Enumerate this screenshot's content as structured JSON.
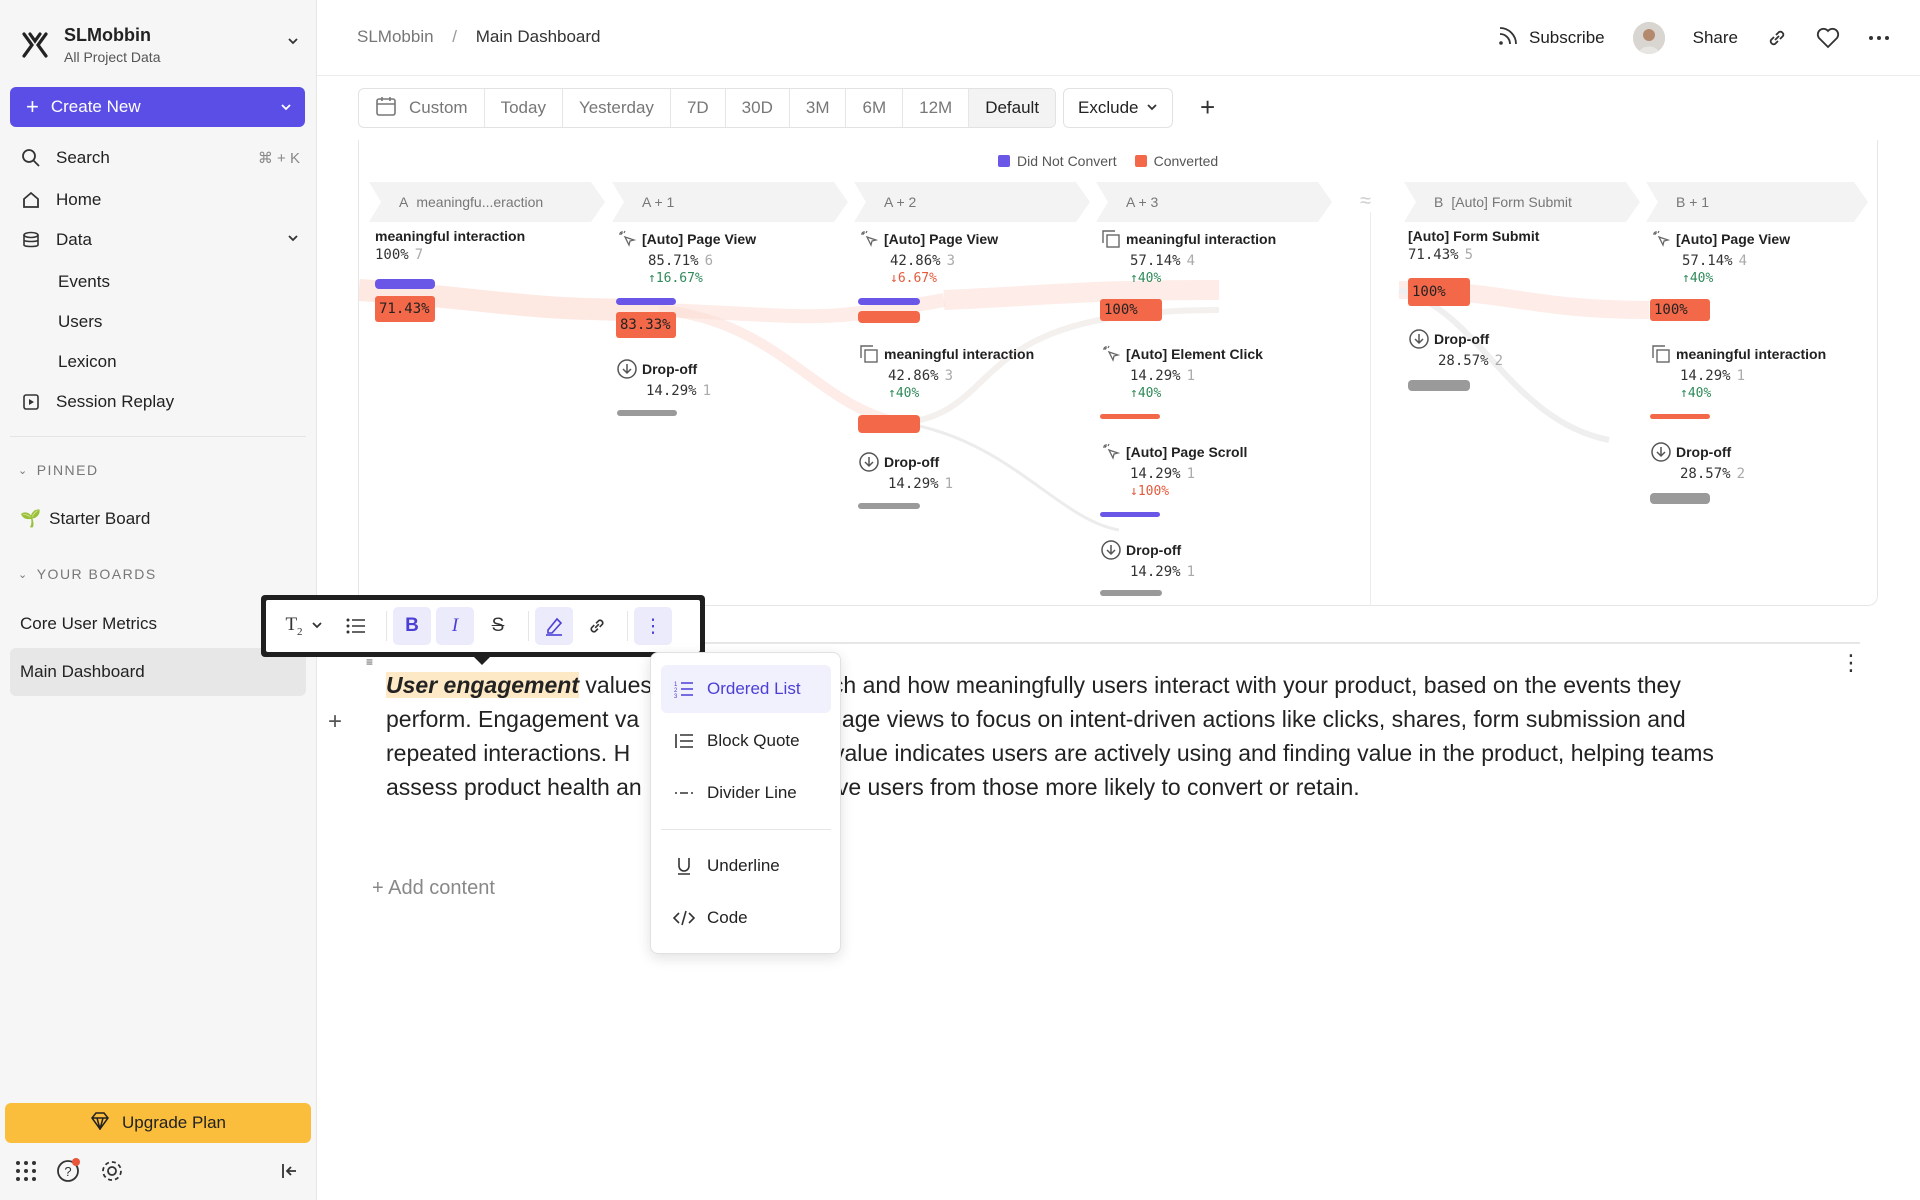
{
  "project": {
    "name": "SLMobbin",
    "subtitle": "All Project Data"
  },
  "create_button": "Create New",
  "nav": {
    "search": "Search",
    "search_shortcut": "⌘ + K",
    "home": "Home",
    "data": "Data",
    "data_children": [
      "Events",
      "Users",
      "Lexicon"
    ],
    "session_replay": "Session Replay"
  },
  "pinned": {
    "heading": "PINNED",
    "items": [
      "Starter Board"
    ]
  },
  "your_boards": {
    "heading": "YOUR BOARDS",
    "items": [
      "Core User Metrics",
      "Main Dashboard"
    ],
    "active": "Main Dashboard"
  },
  "upgrade": "Upgrade Plan",
  "breadcrumb": {
    "root": "SLMobbin",
    "separator": "/",
    "current": "Main Dashboard"
  },
  "header_actions": {
    "subscribe": "Subscribe",
    "share": "Share"
  },
  "date_filters": [
    "Custom",
    "Today",
    "Yesterday",
    "7D",
    "30D",
    "3M",
    "6M",
    "12M",
    "Default"
  ],
  "selected_filter": "Default",
  "exclude": "Exclude",
  "legend": {
    "did_not_convert": "Did Not Convert",
    "converted": "Converted"
  },
  "colors": {
    "accent": "#5b4ee6",
    "did_not_convert": "#6a57e8",
    "converted": "#f4684a",
    "upgrade": "#fbbd3c"
  },
  "steps": [
    {
      "label": "A",
      "name": "meaningfu...eraction"
    },
    {
      "label": "A + 1",
      "name": ""
    },
    {
      "label": "A + 2",
      "name": ""
    },
    {
      "label": "A + 3",
      "name": ""
    },
    {
      "label": "B",
      "name": "[Auto] Form Submit"
    },
    {
      "label": "B + 1",
      "name": ""
    }
  ],
  "nodes": {
    "a0": {
      "name": "meaningful interaction",
      "pct": "100%",
      "count": "7",
      "conv": "71.43%"
    },
    "a1_pv": {
      "name": "[Auto] Page View",
      "pct": "85.71%",
      "count": "6",
      "delta": "↑16.67%",
      "conv": "83.33%"
    },
    "a1_drop": {
      "name": "Drop-off",
      "pct": "14.29%",
      "count": "1"
    },
    "a2_pv": {
      "name": "[Auto] Page View",
      "pct": "42.86%",
      "count": "3",
      "delta": "↓6.67%"
    },
    "a2_mi": {
      "name": "meaningful interaction",
      "pct": "42.86%",
      "count": "3",
      "delta": "↑40%"
    },
    "a2_drop": {
      "name": "Drop-off",
      "pct": "14.29%",
      "count": "1"
    },
    "a3_mi": {
      "name": "meaningful interaction",
      "pct": "57.14%",
      "count": "4",
      "delta": "↑40%",
      "conv": "100%"
    },
    "a3_ec": {
      "name": "[Auto] Element Click",
      "pct": "14.29%",
      "count": "1",
      "delta": "↑40%"
    },
    "a3_ps": {
      "name": "[Auto] Page Scroll",
      "pct": "14.29%",
      "count": "1",
      "delta": "↓100%"
    },
    "a3_drop": {
      "name": "Drop-off",
      "pct": "14.29%",
      "count": "1"
    },
    "b0": {
      "name": "[Auto] Form Submit",
      "pct": "71.43%",
      "count": "5",
      "conv": "100%"
    },
    "b0_drop": {
      "name": "Drop-off",
      "pct": "28.57%",
      "count": "2"
    },
    "b1_pv": {
      "name": "[Auto] Page View",
      "pct": "57.14%",
      "count": "4",
      "delta": "↑40%",
      "conv": "100%"
    },
    "b1_mi": {
      "name": "meaningful interaction",
      "pct": "14.29%",
      "count": "1",
      "delta": "↑40%"
    },
    "b1_drop": {
      "name": "Drop-off",
      "pct": "28.57%",
      "count": "2"
    }
  },
  "editor": {
    "highlight": "User engagement",
    "line1_a": " values",
    "line1_b": "ch and how meaningfully users interact with your product, based on the events they",
    "line2_a": "perform. Engagement va",
    "line2_b": "page views to focus on intent-driven actions like clicks, shares, form submission and",
    "line3_a": "repeated interactions. H",
    "line3_b": ": value indicates users are actively using and finding value in the product, helping teams",
    "line4_a": "assess product health an",
    "line4_b": "ive users from those more likely to convert or retain.",
    "add_content": "+ Add content"
  },
  "format_menu": {
    "items": [
      "Ordered List",
      "Block Quote",
      "Divider Line",
      "Underline",
      "Code"
    ],
    "active": "Ordered List"
  }
}
